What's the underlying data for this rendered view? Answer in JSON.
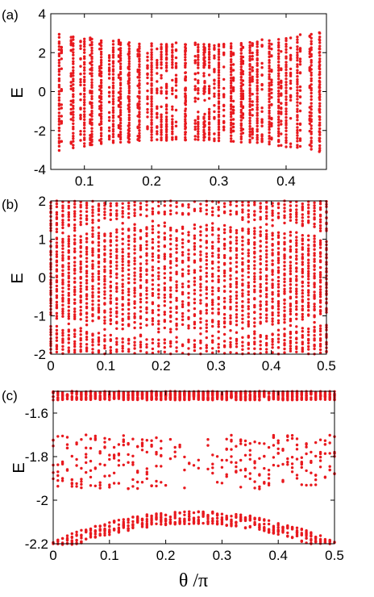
{
  "figure": {
    "xlabel": "θ /π",
    "point_color": "#e8191e"
  },
  "chart_data": [
    {
      "type": "scatter",
      "panel_label": "(a)",
      "ylabel": "E",
      "xlim": [
        0.05,
        0.46
      ],
      "ylim": [
        -4,
        4
      ],
      "xticks": [
        0.1,
        0.2,
        0.3,
        0.4
      ],
      "xtick_labels": [
        "0.1",
        "0.2",
        "0.3",
        "0.4"
      ],
      "yticks": [
        -4,
        -2,
        0,
        2,
        4
      ],
      "ytick_labels": [
        "-4",
        "-2",
        "0",
        "2",
        "4"
      ],
      "grid": false,
      "description_of_data": "energy spectrum E vs θ/π, symmetric about θ/π = 0.25",
      "x_columns": [
        0.0625,
        0.0833,
        0.1,
        0.1111,
        0.125,
        0.1429,
        0.1538,
        0.1667,
        0.1818,
        0.2,
        0.2143,
        0.2222,
        0.2308,
        0.25,
        0.2692,
        0.2778,
        0.2857,
        0.3,
        0.3182,
        0.3333,
        0.3462,
        0.3571,
        0.375,
        0.3889,
        0.4,
        0.4167,
        0.4375,
        0.45
      ],
      "band_edge": [
        [
          0.0625,
          3.3
        ],
        [
          0.1,
          3.0
        ],
        [
          0.15,
          2.7
        ],
        [
          0.2,
          2.55
        ],
        [
          0.25,
          2.5
        ],
        [
          0.3,
          2.55
        ],
        [
          0.35,
          2.7
        ],
        [
          0.4,
          3.0
        ],
        [
          0.45,
          3.4
        ]
      ]
    },
    {
      "type": "scatter",
      "panel_label": "(b)",
      "ylabel": "E",
      "xlim": [
        0,
        0.5
      ],
      "ylim": [
        -2,
        2
      ],
      "xticks": [
        0,
        0.1,
        0.2,
        0.3,
        0.4,
        0.5
      ],
      "xtick_labels": [
        "0",
        "0.1",
        "0.2",
        "0.3",
        "0.4",
        "0.5"
      ],
      "yticks": [
        -2,
        -1,
        0,
        1,
        2
      ],
      "ytick_labels": [
        "-2",
        "-1",
        "0",
        "1",
        "2"
      ],
      "grid": false,
      "description_of_data": "zoomed energy spectrum E vs θ/π over full range 0–0.5"
    },
    {
      "type": "scatter",
      "panel_label": "(c)",
      "ylabel": "E",
      "xlim": [
        0,
        0.5
      ],
      "ylim": [
        -2.2,
        -1.5
      ],
      "xticks": [
        0,
        0.1,
        0.2,
        0.3,
        0.4,
        0.5
      ],
      "xtick_labels": [
        "0",
        "0.1",
        "0.2",
        "0.3",
        "0.4",
        "0.5"
      ],
      "yticks": [
        -2.2,
        -2.0,
        -1.8,
        -1.6
      ],
      "ytick_labels": [
        "-2.2",
        "-2",
        "-1.8",
        "-1.6"
      ],
      "grid": false,
      "description_of_data": "detail of the spectrum between E = -2.2 and -1.5"
    }
  ]
}
